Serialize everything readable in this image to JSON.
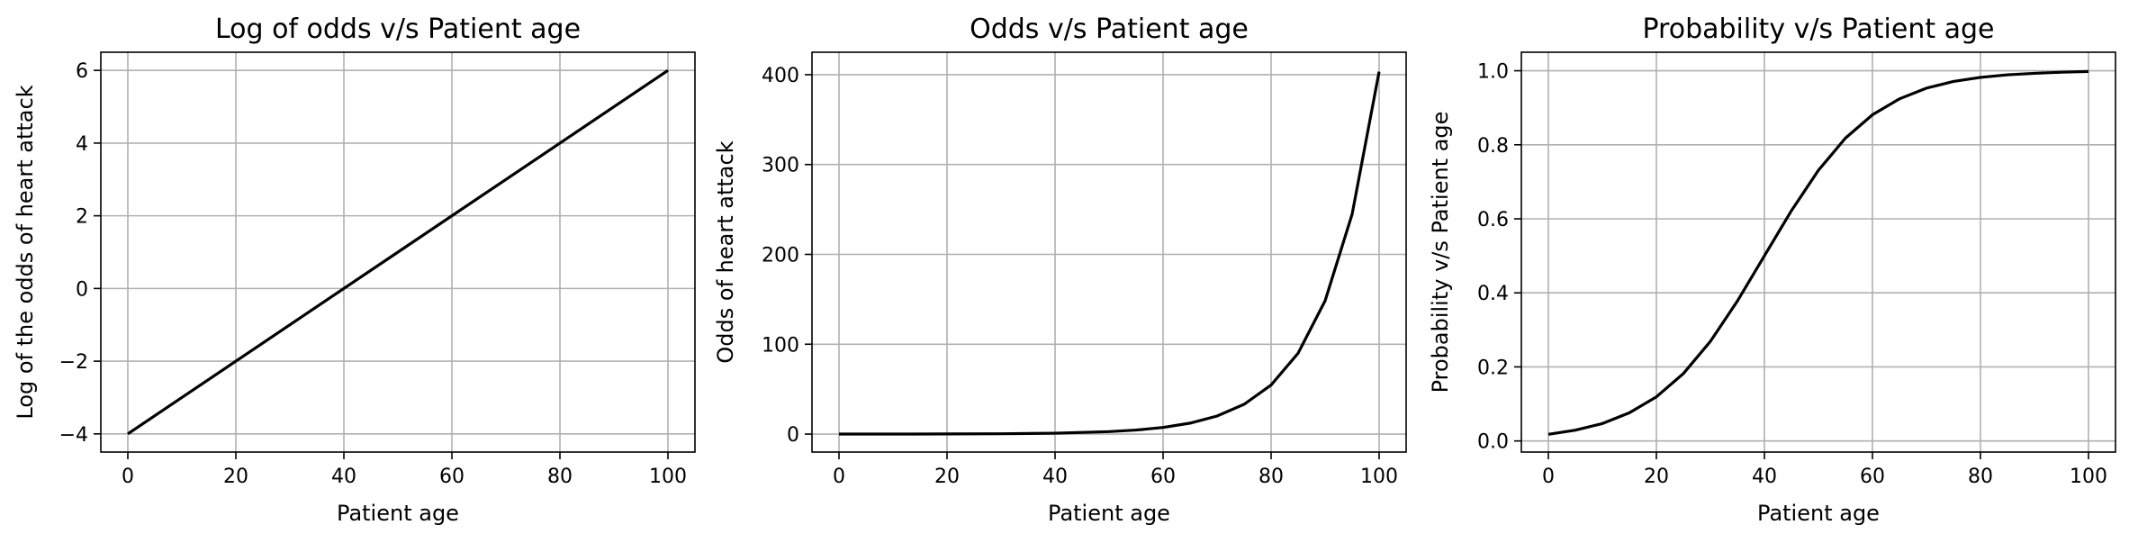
{
  "chart_data": [
    {
      "type": "line",
      "title": "Log of odds v/s Patient age",
      "xlabel": "Patient age",
      "ylabel": "Log of the odds of heart attack",
      "xlim": [
        -5,
        105
      ],
      "ylim": [
        -4.5,
        6.5
      ],
      "xticks": [
        0,
        20,
        40,
        60,
        80,
        100
      ],
      "xtick_labels": [
        "0",
        "20",
        "40",
        "60",
        "80",
        "100"
      ],
      "yticks": [
        -4,
        -2,
        0,
        2,
        4,
        6
      ],
      "ytick_labels": [
        "−4",
        "−2",
        "0",
        "2",
        "4",
        "6"
      ],
      "grid": true,
      "color": "#000000",
      "series": [
        {
          "x": [
            0,
            10,
            20,
            30,
            40,
            50,
            60,
            70,
            80,
            90,
            100
          ],
          "y": [
            -4,
            -3,
            -2,
            -1,
            0,
            1,
            2,
            3,
            4,
            5,
            6
          ]
        }
      ]
    },
    {
      "type": "line",
      "title": "Odds v/s Patient age",
      "xlabel": "Patient age",
      "ylabel": "Odds of heart attack",
      "xlim": [
        -5,
        105
      ],
      "ylim": [
        -20,
        425
      ],
      "xticks": [
        0,
        20,
        40,
        60,
        80,
        100
      ],
      "xtick_labels": [
        "0",
        "20",
        "40",
        "60",
        "80",
        "100"
      ],
      "yticks": [
        0,
        100,
        200,
        300,
        400
      ],
      "ytick_labels": [
        "0",
        "100",
        "200",
        "300",
        "400"
      ],
      "grid": true,
      "color": "#000000",
      "series": [
        {
          "x": [
            0,
            10,
            20,
            30,
            40,
            50,
            55,
            60,
            65,
            70,
            75,
            80,
            85,
            90,
            95,
            100
          ],
          "y": [
            0.02,
            0.05,
            0.14,
            0.37,
            1.0,
            2.72,
            4.48,
            7.39,
            12.18,
            20.09,
            33.12,
            54.6,
            90.02,
            148.41,
            244.69,
            403.43
          ]
        }
      ]
    },
    {
      "type": "line",
      "title": "Probability v/s Patient age",
      "xlabel": "Patient age",
      "ylabel": "Probability v/s Patient age",
      "xlim": [
        -5,
        105
      ],
      "ylim": [
        -0.03,
        1.05
      ],
      "xticks": [
        0,
        20,
        40,
        60,
        80,
        100
      ],
      "xtick_labels": [
        "0",
        "20",
        "40",
        "60",
        "80",
        "100"
      ],
      "yticks": [
        0.0,
        0.2,
        0.4,
        0.6,
        0.8,
        1.0
      ],
      "ytick_labels": [
        "0.0",
        "0.2",
        "0.4",
        "0.6",
        "0.8",
        "1.0"
      ],
      "grid": true,
      "color": "#000000",
      "series": [
        {
          "x": [
            0,
            5,
            10,
            15,
            20,
            25,
            30,
            35,
            40,
            45,
            50,
            55,
            60,
            65,
            70,
            75,
            80,
            85,
            90,
            95,
            100
          ],
          "y": [
            0.018,
            0.029,
            0.047,
            0.076,
            0.119,
            0.182,
            0.269,
            0.378,
            0.5,
            0.622,
            0.731,
            0.818,
            0.881,
            0.924,
            0.953,
            0.971,
            0.982,
            0.989,
            0.993,
            0.996,
            0.998
          ]
        }
      ]
    }
  ]
}
